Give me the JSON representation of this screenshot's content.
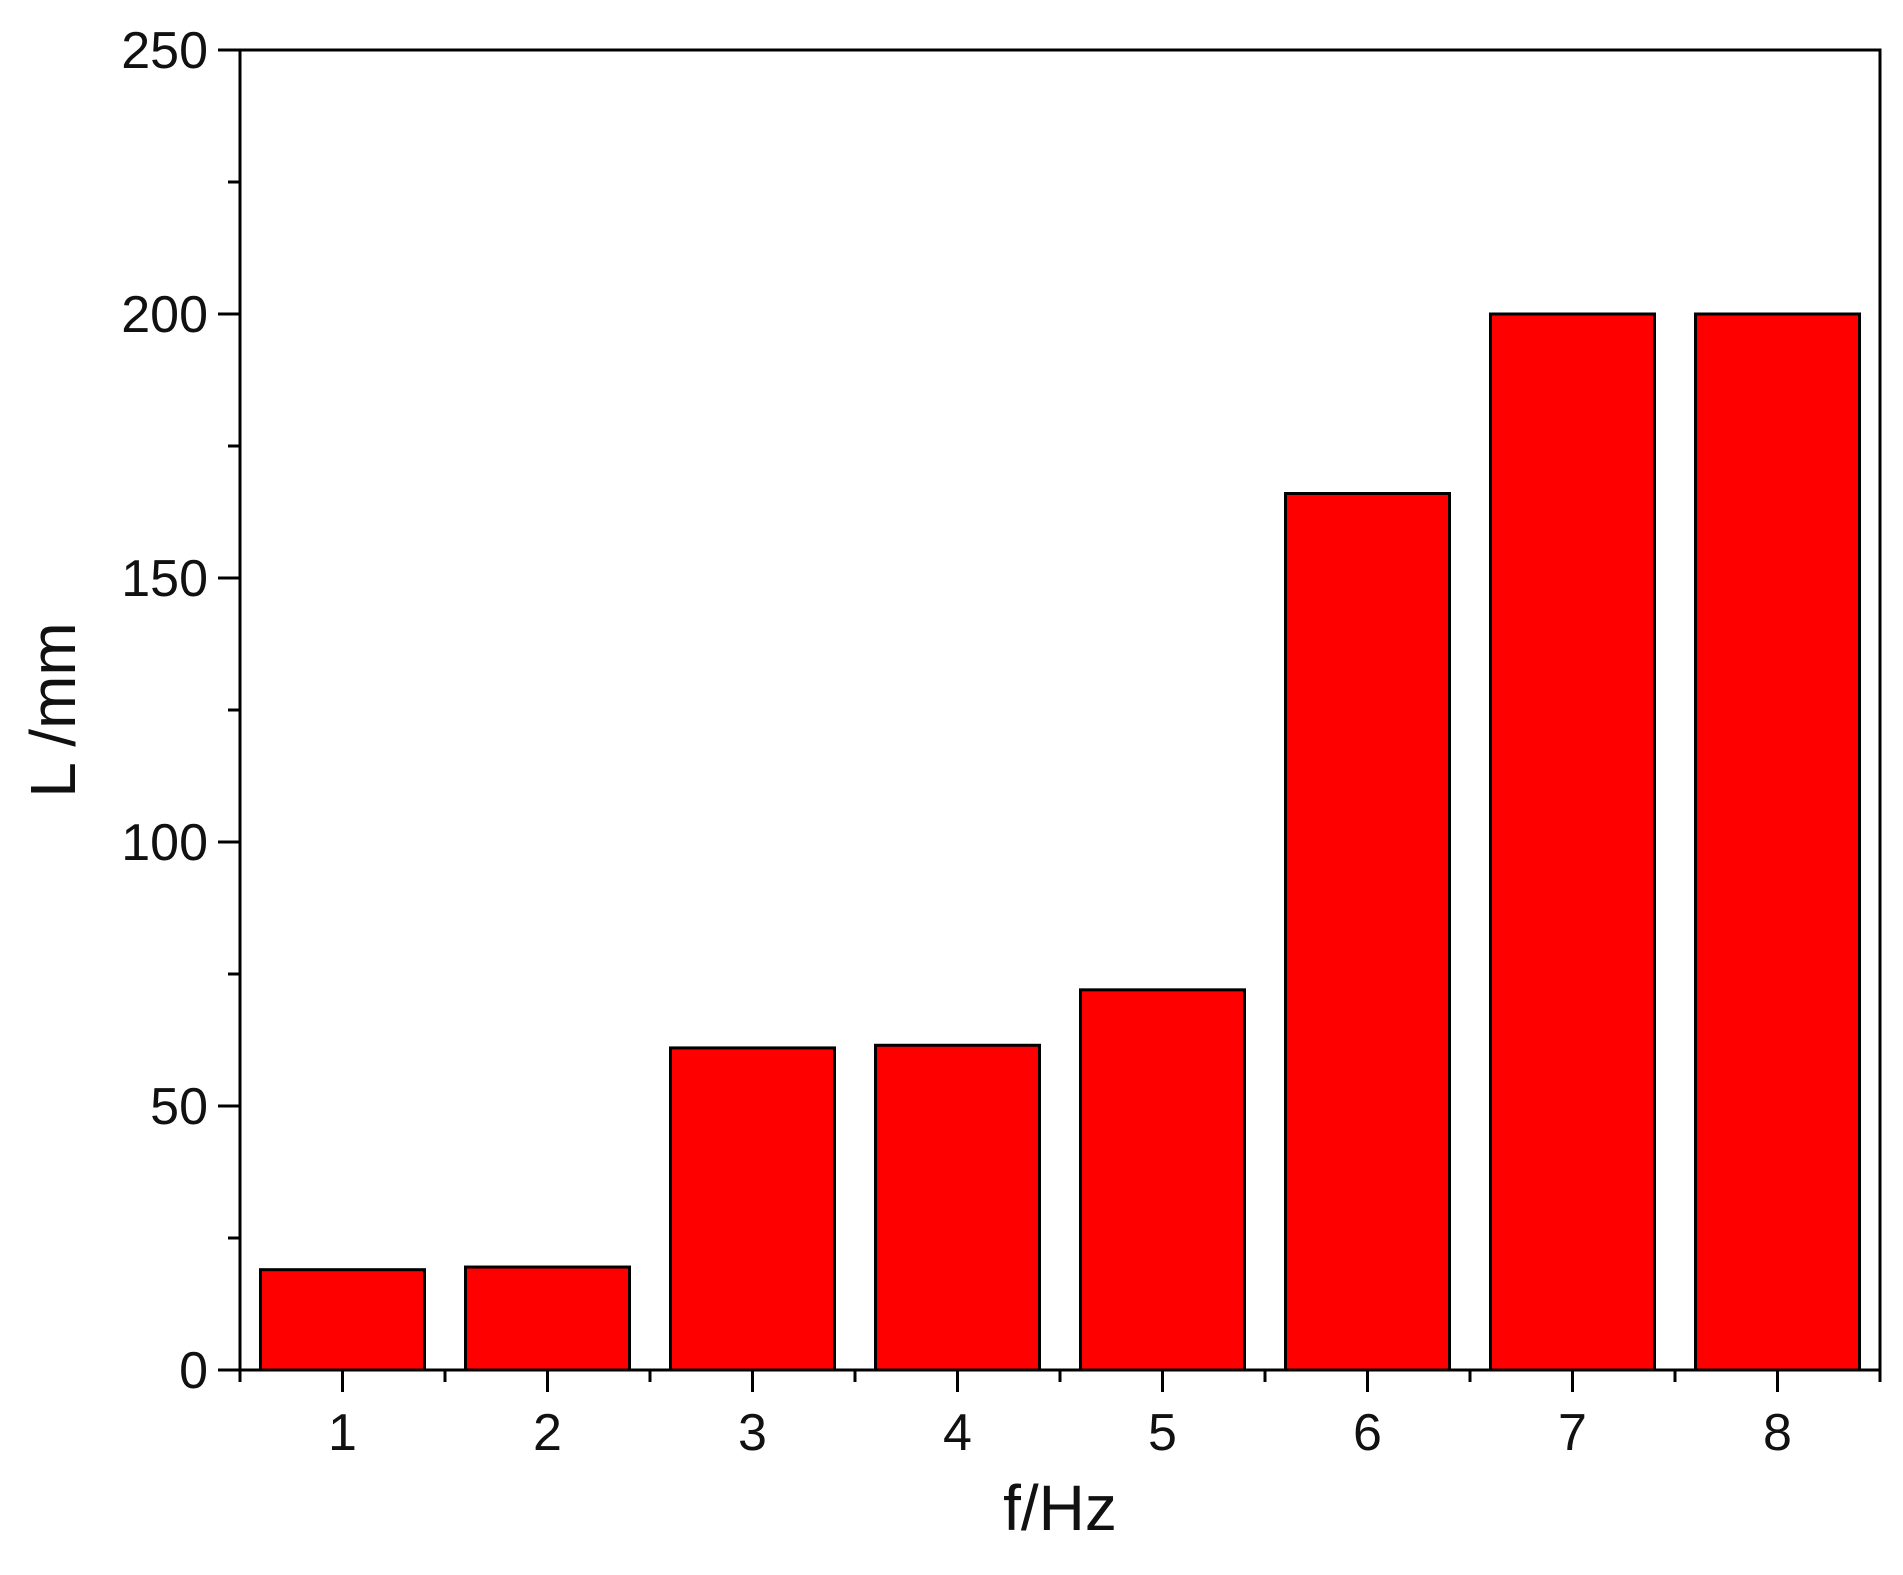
{
  "chart_data": {
    "type": "bar",
    "categories": [
      "1",
      "2",
      "3",
      "4",
      "5",
      "6",
      "7",
      "8"
    ],
    "values": [
      19,
      19.5,
      61,
      61.5,
      72,
      166,
      200,
      200
    ],
    "xlabel": "f/Hz",
    "ylabel": "L /mm",
    "ylim": [
      0,
      250
    ],
    "yticks": [
      "0",
      "50",
      "100",
      "150",
      "200",
      "250"
    ],
    "grid": false,
    "legend": "none",
    "colors": {
      "bar_fill": "#ff0000",
      "bar_edge": "#000000",
      "axis": "#000000"
    }
  }
}
